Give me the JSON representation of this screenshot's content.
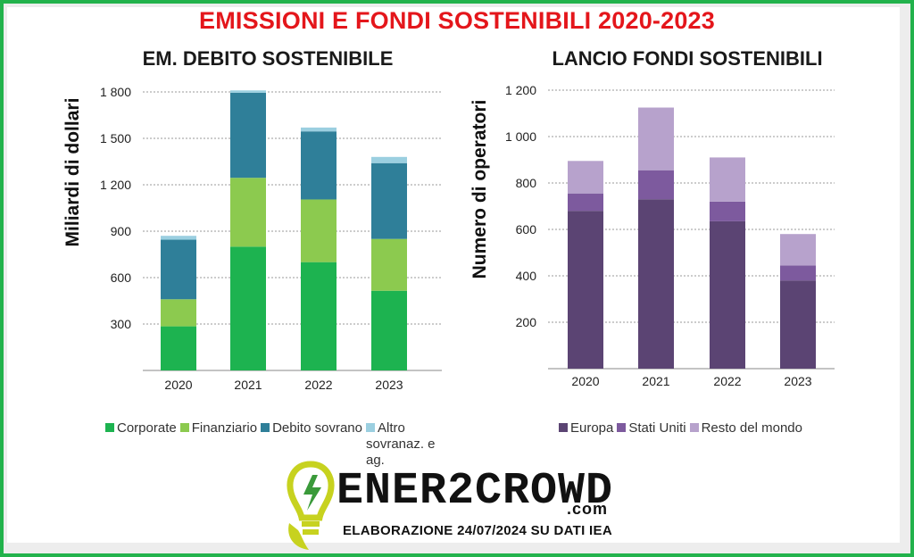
{
  "title": "EMISSIONI E FONDI SOSTENIBILI 2020-2023",
  "brand": {
    "name": "ENER2CROWD",
    "suffix": ".com",
    "credits": "ELABORAZIONE 24/07/2024 SU DATI IEA",
    "logo_icon": "lightbulb-leaf-icon"
  },
  "chart_data": [
    {
      "type": "bar",
      "stacked": true,
      "title": "EM. DEBITO SOSTENIBILE",
      "ylabel": "Miliardi di dollari",
      "xlabel": "",
      "ylim": [
        0,
        1800
      ],
      "yticks": [
        300,
        600,
        900,
        1200,
        1500,
        1800
      ],
      "ytick_labels": [
        "300",
        "600",
        "900",
        "1 200",
        "1 500",
        "1 800"
      ],
      "grid": true,
      "legend_position": "bottom",
      "categories": [
        "2020",
        "2021",
        "2022",
        "2023"
      ],
      "series": [
        {
          "name": "Corporate",
          "color": "#1db350",
          "values": [
            285,
            800,
            700,
            515
          ]
        },
        {
          "name": "Finanziario",
          "color": "#8cca4f",
          "values": [
            175,
            445,
            405,
            335
          ]
        },
        {
          "name": "Debito sovrano",
          "color": "#2f7f99",
          "values": [
            385,
            550,
            440,
            490
          ]
        },
        {
          "name": "Altro sovranaz. e ag.",
          "color": "#9bcfe0",
          "values": [
            25,
            15,
            25,
            40
          ]
        }
      ]
    },
    {
      "type": "bar",
      "stacked": true,
      "title": "LANCIO FONDI SOSTENIBILI",
      "ylabel": "Numero di operatori",
      "xlabel": "",
      "ylim": [
        0,
        1200
      ],
      "yticks": [
        200,
        400,
        600,
        800,
        1000,
        1200
      ],
      "ytick_labels": [
        "200",
        "400",
        "600",
        "800",
        "1 000",
        "1 200"
      ],
      "grid": true,
      "legend_position": "bottom",
      "categories": [
        "2020",
        "2021",
        "2022",
        "2023"
      ],
      "series": [
        {
          "name": "Europa",
          "color": "#5b4473",
          "values": [
            680,
            730,
            635,
            380
          ]
        },
        {
          "name": "Stati Uniti",
          "color": "#7d5a9e",
          "values": [
            75,
            125,
            85,
            65
          ]
        },
        {
          "name": "Resto del mondo",
          "color": "#b7a2cc",
          "values": [
            140,
            270,
            190,
            135
          ]
        }
      ]
    }
  ]
}
